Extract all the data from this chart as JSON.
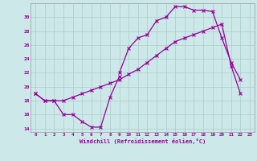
{
  "xlabel": "Windchill (Refroidissement éolien,°C)",
  "bg_color": "#cce8e8",
  "grid_color": "#aacccc",
  "line_color": "#990099",
  "xlim": [
    -0.5,
    23.5
  ],
  "ylim": [
    13.5,
    32.0
  ],
  "xticks": [
    0,
    1,
    2,
    3,
    4,
    5,
    6,
    7,
    8,
    9,
    10,
    11,
    12,
    13,
    14,
    15,
    16,
    17,
    18,
    19,
    20,
    21,
    22,
    23
  ],
  "yticks": [
    14,
    16,
    18,
    20,
    22,
    24,
    26,
    28,
    30
  ],
  "curve1": {
    "x": [
      0,
      1,
      2,
      3,
      4,
      5,
      6,
      7,
      8,
      9
    ],
    "y": [
      19.0,
      18.0,
      18.0,
      16.0,
      16.0,
      15.0,
      14.2,
      14.2,
      18.5,
      21.5
    ]
  },
  "curve2": {
    "x": [
      0,
      1,
      2,
      3,
      4,
      5,
      6,
      7,
      8,
      9,
      10,
      11,
      12,
      13,
      14,
      15,
      16,
      17,
      18,
      19,
      20,
      21,
      22
    ],
    "y": [
      19.0,
      18.0,
      18.0,
      18.0,
      18.5,
      19.0,
      19.5,
      20.0,
      20.5,
      21.0,
      21.8,
      22.5,
      23.5,
      24.5,
      25.5,
      26.5,
      27.0,
      27.5,
      28.0,
      28.5,
      29.0,
      23.0,
      19.0
    ]
  },
  "curve3": {
    "x": [
      9,
      10,
      11,
      12,
      13,
      14,
      15,
      16,
      17,
      18,
      19,
      20,
      21,
      22
    ],
    "y": [
      22.0,
      25.5,
      27.0,
      27.5,
      29.5,
      30.0,
      31.5,
      31.5,
      31.0,
      31.0,
      30.8,
      27.0,
      23.5,
      21.0
    ]
  },
  "marker": "x",
  "markersize": 3,
  "linewidth": 0.9
}
